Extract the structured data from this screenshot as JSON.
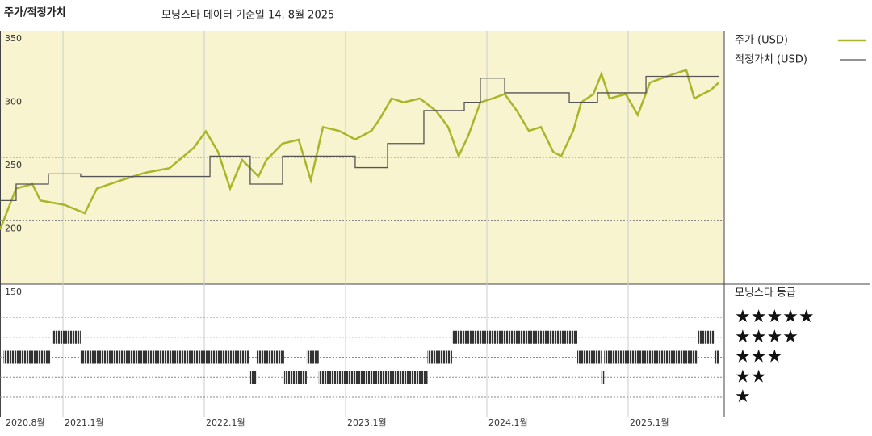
{
  "chart_data": {
    "type": "line",
    "title": "주가/적정가치",
    "subtitle": "모닝스타 데이터 기준일 14. 8월 2025",
    "xlim": [
      2020.554,
      2025.68
    ],
    "ylim": [
      150,
      350
    ],
    "yticks": [
      150,
      200,
      250,
      300,
      350
    ],
    "xticks": [
      {
        "value": 2020.583,
        "label": "2020.8월"
      },
      {
        "value": 2021.0,
        "label": "2021.1월"
      },
      {
        "value": 2022.0,
        "label": "2022.1월"
      },
      {
        "value": 2023.0,
        "label": "2023.1월"
      },
      {
        "value": 2024.0,
        "label": "2024.1월"
      },
      {
        "value": 2025.0,
        "label": "2025.1월"
      }
    ],
    "grid": true,
    "series": [
      {
        "name": "주가 (USD)",
        "color": "#aab52a",
        "step": false,
        "x": [
          2020.554,
          2020.668,
          2020.783,
          2020.84,
          2021.011,
          2021.154,
          2021.24,
          2021.411,
          2021.583,
          2021.754,
          2021.926,
          2022.011,
          2022.097,
          2022.183,
          2022.268,
          2022.383,
          2022.44,
          2022.554,
          2022.668,
          2022.754,
          2022.84,
          2022.954,
          2023.068,
          2023.183,
          2023.24,
          2023.326,
          2023.411,
          2023.526,
          2023.64,
          2023.726,
          2023.8,
          2023.868,
          2023.954,
          2024.04,
          2024.126,
          2024.211,
          2024.297,
          2024.383,
          2024.469,
          2024.526,
          2024.611,
          2024.668,
          2024.754,
          2024.811,
          2024.868,
          2024.983,
          2025.068,
          2025.154,
          2025.24,
          2025.326,
          2025.411,
          2025.468,
          2025.526,
          2025.583,
          2025.64
        ],
        "values": [
          193,
          225.5,
          229,
          216,
          212.6,
          206,
          225.5,
          232,
          238,
          241.6,
          257.7,
          270.6,
          254.5,
          225.5,
          248,
          235,
          248,
          261,
          264,
          232,
          274,
          271,
          264.2,
          271,
          280,
          296.5,
          293.5,
          296.5,
          286.8,
          274,
          251,
          267,
          293.5,
          296.5,
          300,
          287,
          271,
          274,
          254.5,
          251,
          271,
          293.5,
          300,
          316,
          296.5,
          300,
          283.5,
          309,
          312.6,
          316,
          319,
          296.5,
          300,
          303,
          309
        ]
      },
      {
        "name": "적정가치 (USD)",
        "color": "#555555",
        "step": true,
        "x": [
          2020.554,
          2020.668,
          2020.897,
          2021.125,
          2022.04,
          2022.325,
          2022.554,
          2023.068,
          2023.297,
          2023.554,
          2023.84,
          2023.954,
          2024.126,
          2024.583,
          2024.783,
          2025.126,
          2025.64
        ],
        "values": [
          216,
          229,
          237,
          235,
          251,
          229,
          251,
          242,
          261,
          287,
          293.5,
          312.6,
          301,
          293.5,
          301,
          314,
          314
        ]
      }
    ],
    "ratings_title": "모닝스타 등급",
    "star_labels": [
      "★★★★★",
      "★★★★",
      "★★★",
      "★★",
      "★"
    ],
    "ratings": [
      {
        "from": 2020.58,
        "to": 2020.91,
        "stars": 3
      },
      {
        "from": 2020.925,
        "to": 2021.125,
        "stars": 4
      },
      {
        "from": 2021.125,
        "to": 2022.314,
        "stars": 3
      },
      {
        "from": 2022.325,
        "to": 2022.37,
        "stars": 2
      },
      {
        "from": 2022.37,
        "to": 2022.565,
        "stars": 3
      },
      {
        "from": 2022.565,
        "to": 2022.725,
        "stars": 2
      },
      {
        "from": 2022.725,
        "to": 2022.81,
        "stars": 3
      },
      {
        "from": 2022.81,
        "to": 2023.58,
        "stars": 2
      },
      {
        "from": 2023.58,
        "to": 2023.754,
        "stars": 3
      },
      {
        "from": 2023.754,
        "to": 2024.64,
        "stars": 4
      },
      {
        "from": 2024.64,
        "to": 2024.81,
        "stars": 3
      },
      {
        "from": 2024.81,
        "to": 2024.83,
        "stars": 2
      },
      {
        "from": 2024.83,
        "to": 2025.497,
        "stars": 3
      },
      {
        "from": 2025.497,
        "to": 2025.61,
        "stars": 4
      },
      {
        "from": 2025.61,
        "to": 2025.64,
        "stars": 3
      }
    ]
  }
}
